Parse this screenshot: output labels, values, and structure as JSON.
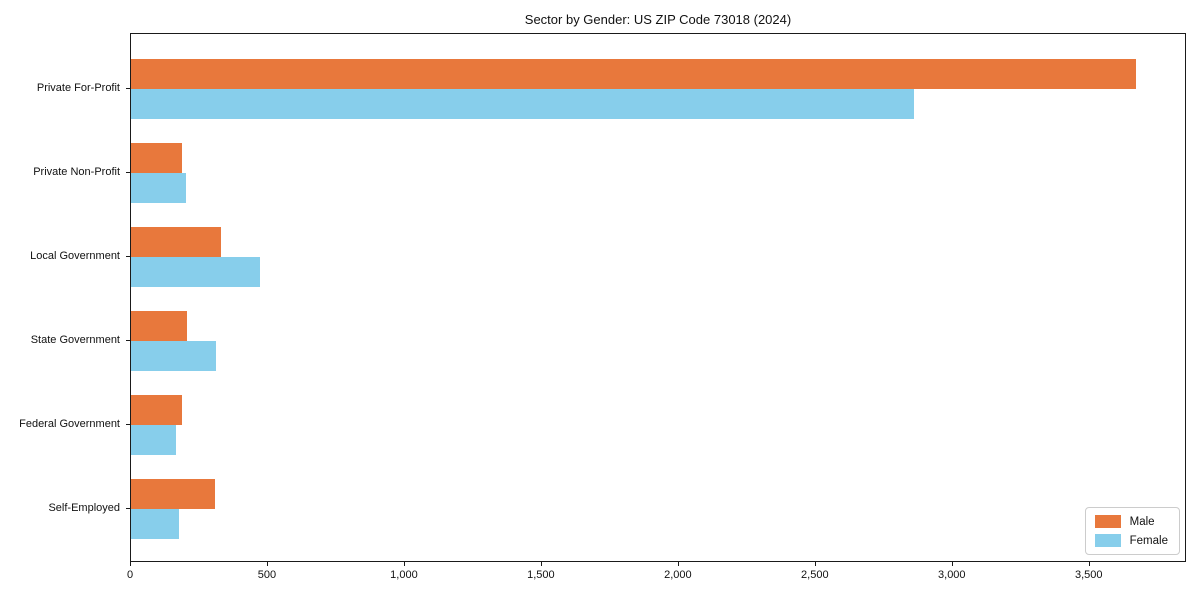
{
  "chart_data": {
    "type": "bar",
    "orientation": "horizontal",
    "title": "Sector by Gender: US ZIP Code 73018 (2024)",
    "categories": [
      "Private For-Profit",
      "Private Non-Profit",
      "Local Government",
      "State Government",
      "Federal Government",
      "Self-Employed"
    ],
    "series": [
      {
        "name": "Male",
        "color": "#E8783C",
        "values": [
          3670,
          185,
          330,
          205,
          185,
          305
        ]
      },
      {
        "name": "Female",
        "color": "#87CEEB",
        "values": [
          2860,
          200,
          470,
          310,
          165,
          175
        ]
      }
    ],
    "xlabel": "",
    "ylabel": "",
    "xlim": [
      0,
      3855
    ],
    "xticks": [
      0,
      500,
      1000,
      1500,
      2000,
      2500,
      3000,
      3500
    ],
    "xtick_labels": [
      "0",
      "500",
      "1,000",
      "1,500",
      "2,000",
      "2,500",
      "3,000",
      "3,500"
    ],
    "grid": false,
    "legend": {
      "position": "lower right",
      "entries": [
        "Male",
        "Female"
      ]
    }
  }
}
